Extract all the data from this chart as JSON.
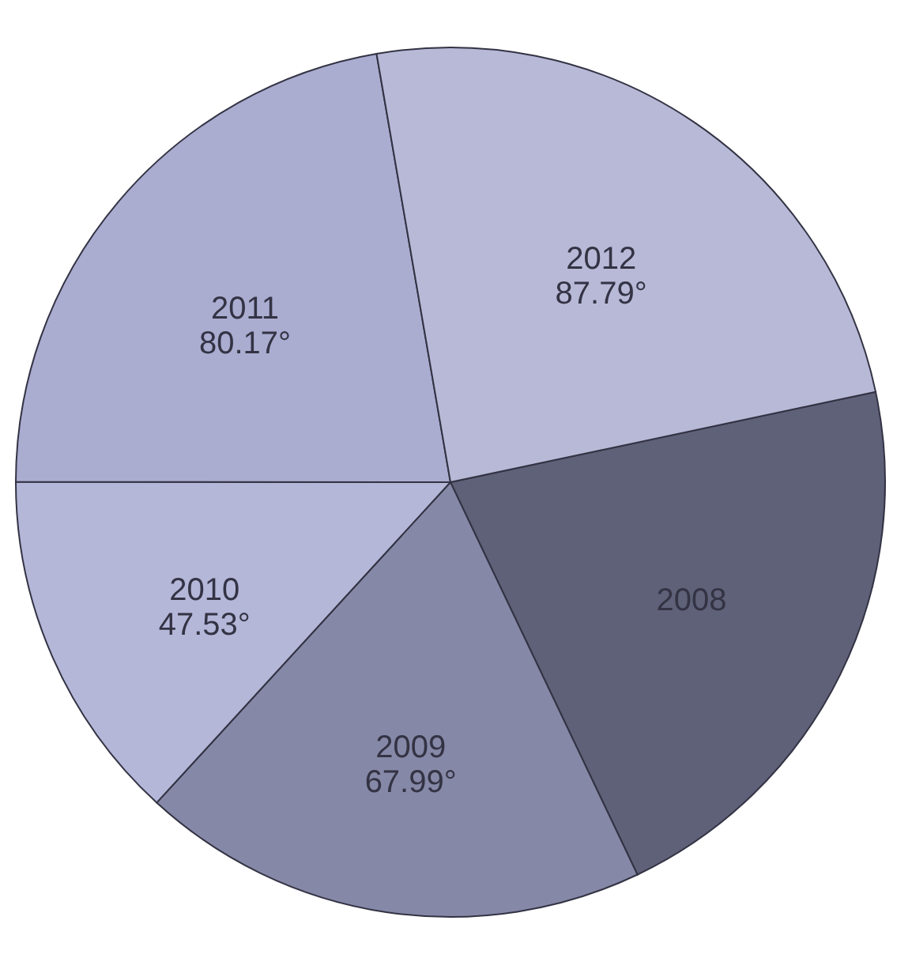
{
  "chart_data": {
    "type": "pie",
    "categories": [
      "2008",
      "2009",
      "2010",
      "2011",
      "2012"
    ],
    "values": [
      76.52,
      67.99,
      47.53,
      80.17,
      87.79
    ],
    "value_labels": [
      null,
      "67.99°",
      "47.53°",
      "80.17°",
      "87.79°"
    ],
    "colors": [
      "#5f6179",
      "#8688a7",
      "#b5b7d9",
      "#aaacd0",
      "#b7b9d7"
    ],
    "legend": false
  }
}
